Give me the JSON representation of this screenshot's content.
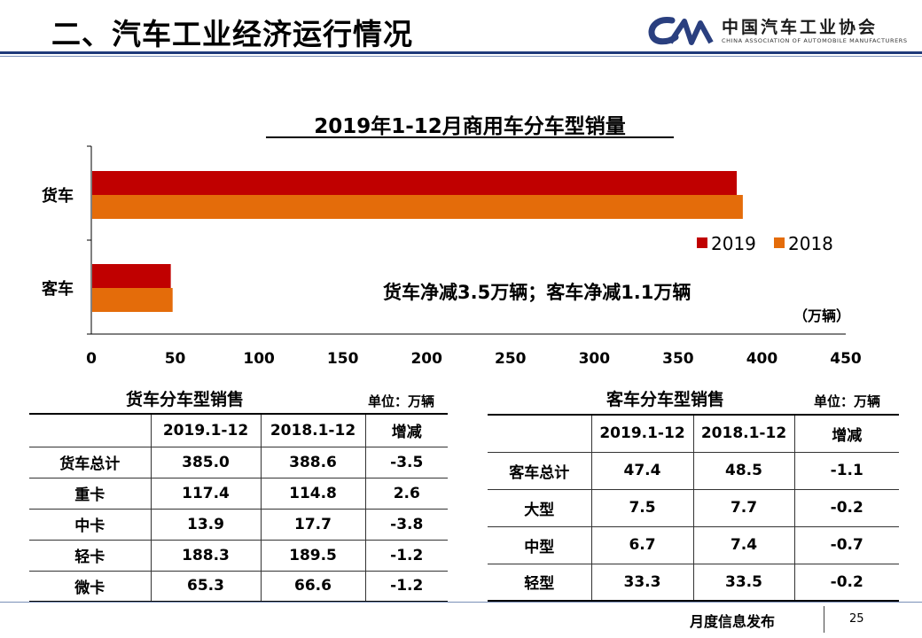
{
  "header": {
    "title": "二、汽车工业经济运行情况",
    "logo_text": "中国汽车工业协会",
    "logo_subtitle": "CHINA ASSOCIATION OF AUTOMOBILE MANUFACTURERS"
  },
  "chart_data": {
    "type": "bar",
    "orientation": "horizontal",
    "title": "2019年1-12月商用车分车型销量",
    "categories": [
      "货车",
      "客车"
    ],
    "series": [
      {
        "name": "2019",
        "color": "#c00000",
        "values": [
          385.0,
          47.4
        ]
      },
      {
        "name": "2018",
        "color": "#e46c0a",
        "values": [
          388.6,
          48.5
        ]
      }
    ],
    "xlim": [
      0,
      450
    ],
    "x_ticks": [
      0,
      50,
      100,
      150,
      200,
      250,
      300,
      350,
      400,
      450
    ],
    "xlabel": "（万辆）",
    "annotation": "货车净减3.5万辆；客车净减1.1万辆",
    "legend_position": "right"
  },
  "truck_table": {
    "title": "货车分车型销售",
    "unit": "单位：万辆",
    "headers": [
      "",
      "2019.1-12",
      "2018.1-12",
      "增减"
    ],
    "rows": [
      [
        "货车总计",
        "385.0",
        "388.6",
        "-3.5"
      ],
      [
        "重卡",
        "117.4",
        "114.8",
        "2.6"
      ],
      [
        "中卡",
        "13.9",
        "17.7",
        "-3.8"
      ],
      [
        "轻卡",
        "188.3",
        "189.5",
        "-1.2"
      ],
      [
        "微卡",
        "65.3",
        "66.6",
        "-1.2"
      ]
    ]
  },
  "bus_table": {
    "title": "客车分车型销售",
    "unit": "单位：万辆",
    "headers": [
      "",
      "2019.1-12",
      "2018.1-12",
      "增减"
    ],
    "rows": [
      [
        "客车总计",
        "47.4",
        "48.5",
        "-1.1"
      ],
      [
        "大型",
        "7.5",
        "7.7",
        "-0.2"
      ],
      [
        "中型",
        "6.7",
        "7.4",
        "-0.7"
      ],
      [
        "轻型",
        "33.3",
        "33.5",
        "-0.2"
      ]
    ]
  },
  "footer": {
    "label": "月度信息发布",
    "page": "25"
  }
}
